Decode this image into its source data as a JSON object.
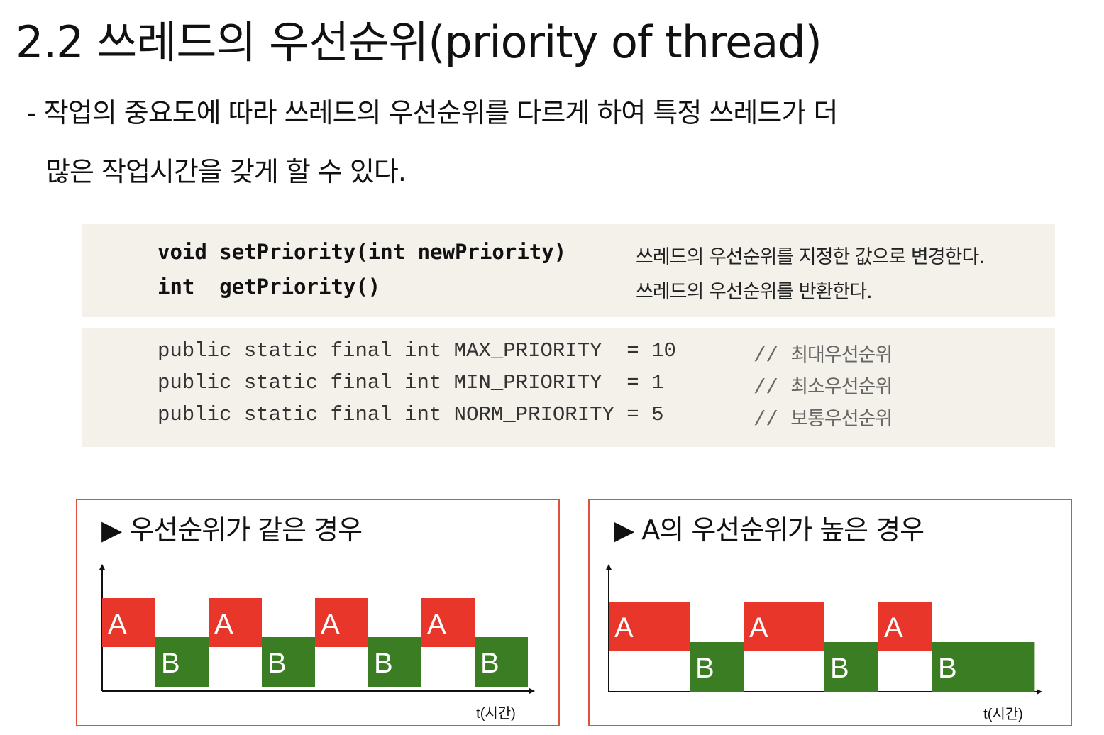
{
  "title": "2.2 쓰레드의 우선순위(priority of thread)",
  "description": {
    "line1": "- 작업의 중요도에 따라 쓰레드의 우선순위를 다르게 하여 특정 쓰레드가 더",
    "line2": "많은 작업시간을 갖게 할 수 있다."
  },
  "methods": [
    {
      "signature": "void setPriority(int newPriority)",
      "desc": "쓰레드의 우선순위를 지정한 값으로 변경한다."
    },
    {
      "signature": "int  getPriority()",
      "desc": "쓰레드의 우선순위를 반환한다."
    }
  ],
  "constants": [
    {
      "code": "public static final int MAX_PRIORITY  = 10",
      "comment_prefix": "// ",
      "comment": "최대우선순위"
    },
    {
      "code": "public static final int MIN_PRIORITY  = 1",
      "comment_prefix": "// ",
      "comment": "최소우선순위"
    },
    {
      "code": "public static final int NORM_PRIORITY = 5",
      "comment_prefix": "// ",
      "comment": "보통우선순위"
    }
  ],
  "colors": {
    "thread_a": "#e8372a",
    "thread_b": "#3a7d23",
    "panel_border": "#e0503f",
    "code_bg": "#f3f1ea"
  },
  "diagrams": [
    {
      "title": "▶ 우선순위가 같은 경우",
      "x_label": "t(시간)",
      "segments": [
        {
          "thread": "A",
          "duration": 1
        },
        {
          "thread": "B",
          "duration": 1
        },
        {
          "thread": "A",
          "duration": 1
        },
        {
          "thread": "B",
          "duration": 1
        },
        {
          "thread": "A",
          "duration": 1
        },
        {
          "thread": "B",
          "duration": 1
        },
        {
          "thread": "A",
          "duration": 1
        },
        {
          "thread": "B",
          "duration": 1
        }
      ]
    },
    {
      "title": "▶ A의 우선순위가 높은 경우",
      "x_label": "t(시간)",
      "segments": [
        {
          "thread": "A",
          "duration": 1.5
        },
        {
          "thread": "B",
          "duration": 1
        },
        {
          "thread": "A",
          "duration": 1.5
        },
        {
          "thread": "B",
          "duration": 1
        },
        {
          "thread": "A",
          "duration": 1
        },
        {
          "thread": "B",
          "duration": 1.9
        }
      ]
    }
  ]
}
